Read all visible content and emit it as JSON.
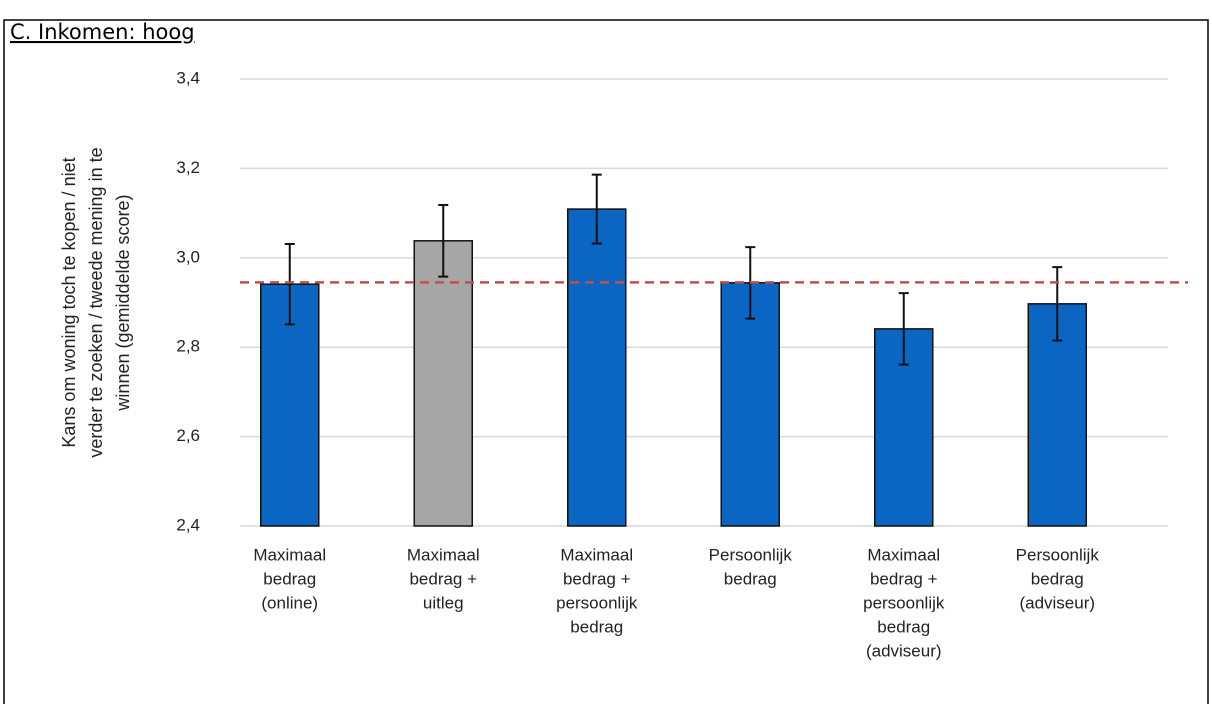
{
  "chart_data": {
    "type": "bar",
    "title": "C. Inkomen: hoog",
    "y_label": [
      "Kans om woning toch te kopen / niet",
      "verder te zoeken / tweede mening in te",
      "winnen (gemiddelde score)"
    ],
    "categories": [
      [
        "Maximaal",
        "bedrag",
        "(online)"
      ],
      [
        "Maximaal",
        "bedrag  +",
        "uitleg"
      ],
      [
        "Maximaal",
        "bedrag +",
        "persoonlijk",
        "bedrag"
      ],
      [
        "Persoonlijk",
        "bedrag"
      ],
      [
        "Maximaal",
        "bedrag  +",
        "persoonlijk",
        "bedrag",
        "(adviseur)"
      ],
      [
        "Persoonlijk",
        "bedrag",
        "(adviseur)"
      ]
    ],
    "values": [
      2.941,
      3.038,
      3.109,
      2.944,
      2.841,
      2.897
    ],
    "errors": [
      0.09,
      0.08,
      0.077,
      0.08,
      0.08,
      0.082
    ],
    "colors": [
      "#0a66c2",
      "#a6a6a6",
      "#0a66c2",
      "#0a66c2",
      "#0a66c2",
      "#0a66c2"
    ],
    "reference_line": 2.945,
    "reference_color": "#c0504d",
    "ylim": [
      2.4,
      3.4
    ],
    "yticks": [
      {
        "value": 2.4,
        "label": "2,4"
      },
      {
        "value": 2.6,
        "label": "2,6"
      },
      {
        "value": 2.8,
        "label": "2,8"
      },
      {
        "value": 3.0,
        "label": "3,0"
      },
      {
        "value": 3.2,
        "label": "3,2"
      },
      {
        "value": 3.4,
        "label": "3,4"
      }
    ],
    "grid": true
  }
}
